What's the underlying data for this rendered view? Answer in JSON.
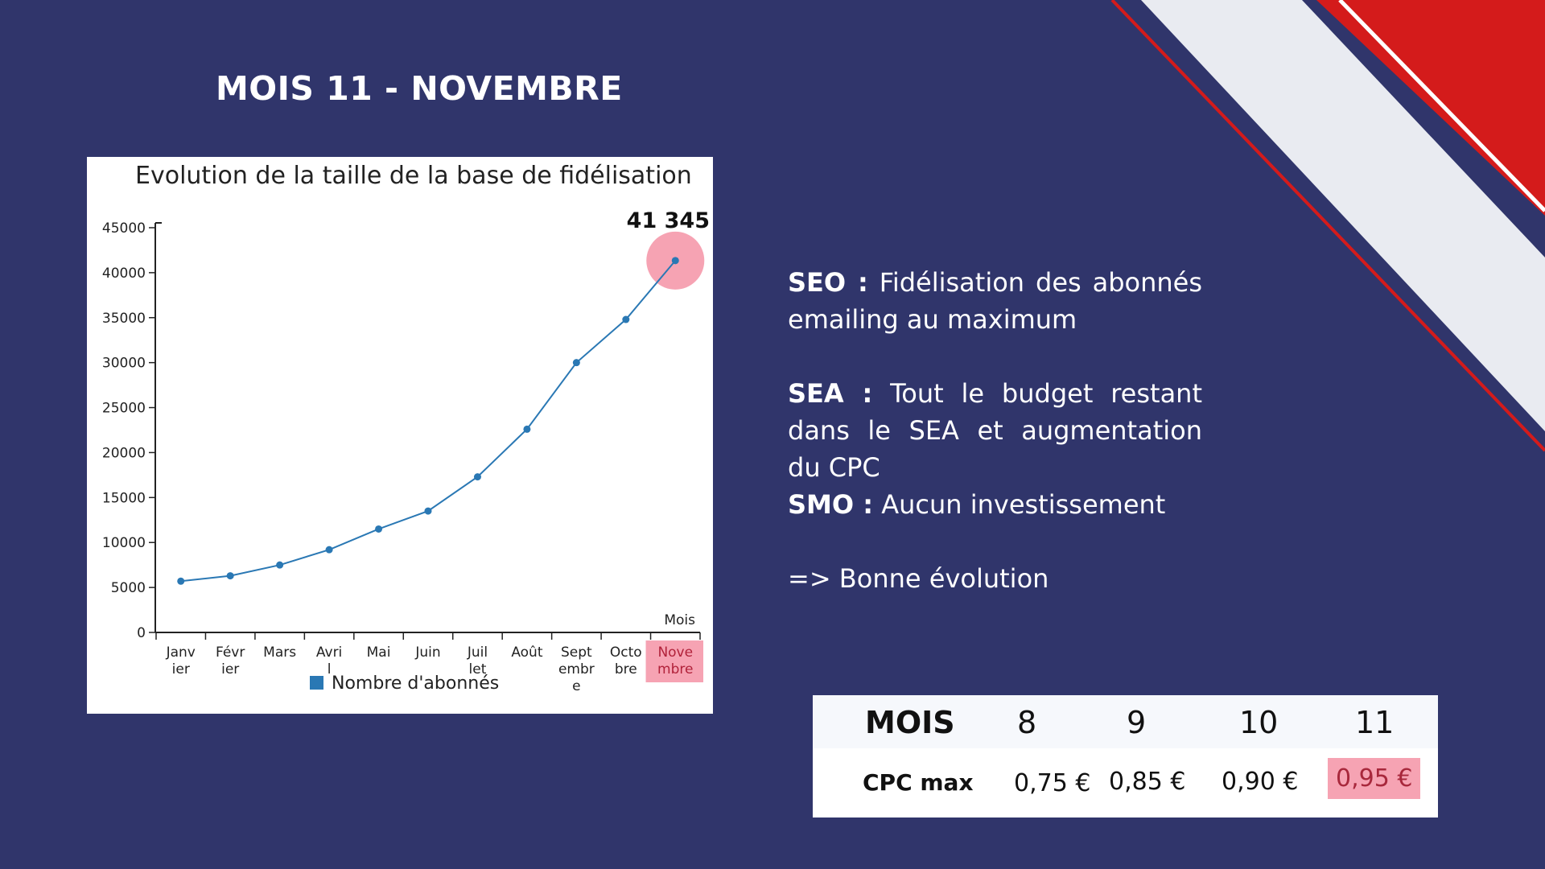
{
  "slide": {
    "title": "MOIS 11 - NOVEMBRE"
  },
  "colors": {
    "background": "#30356b",
    "accent_red": "#d41b1b",
    "accent_light": "#e9ebf1",
    "line": "#2a78b4",
    "highlight": "#f6a3b3"
  },
  "chart_data": {
    "type": "line",
    "title": "Evolution de la taille de la base de fidélisation",
    "xlabel": "Mois",
    "ylabel": "",
    "ylim": [
      0,
      45000
    ],
    "yticks": [
      "0",
      "5000",
      "10000",
      "15000",
      "20000",
      "25000",
      "30000",
      "35000",
      "40000",
      "45000"
    ],
    "categories": [
      [
        "Janv",
        "ier"
      ],
      [
        "Févr",
        "ier"
      ],
      [
        "Mars"
      ],
      [
        "Avri",
        "l"
      ],
      [
        "Mai"
      ],
      [
        "Juin"
      ],
      [
        "Juil",
        "let"
      ],
      [
        "Août"
      ],
      [
        "Sept",
        "embr",
        "e"
      ],
      [
        "Octo",
        "bre"
      ],
      [
        "Nove",
        "mbre"
      ]
    ],
    "series": [
      {
        "name": "Nombre d'abonnés",
        "values": [
          5700,
          6300,
          7500,
          9200,
          11500,
          13500,
          17300,
          22600,
          30000,
          34800,
          41345
        ]
      }
    ],
    "annotation": "41 345",
    "highlight_index": 10,
    "legend_position": "bottom",
    "grid": false
  },
  "strategy": {
    "seo": {
      "label": "SEO :",
      "text": "Fidélisation des abonnés emailing au maximum"
    },
    "sea": {
      "label": "SEA :",
      "text": "Tout le budget restant dans le SEA et augmentation du CPC"
    },
    "smo": {
      "label": "SMO :",
      "text": "Aucun investissement"
    },
    "conclusion": "=> Bonne évolution"
  },
  "cpc_table": {
    "header_label": "MOIS",
    "months": [
      "8",
      "9",
      "10",
      "11"
    ],
    "row_label": "CPC max",
    "values": [
      "0,75 €",
      "0,85 €",
      "0,90 €",
      "0,95 €"
    ]
  }
}
